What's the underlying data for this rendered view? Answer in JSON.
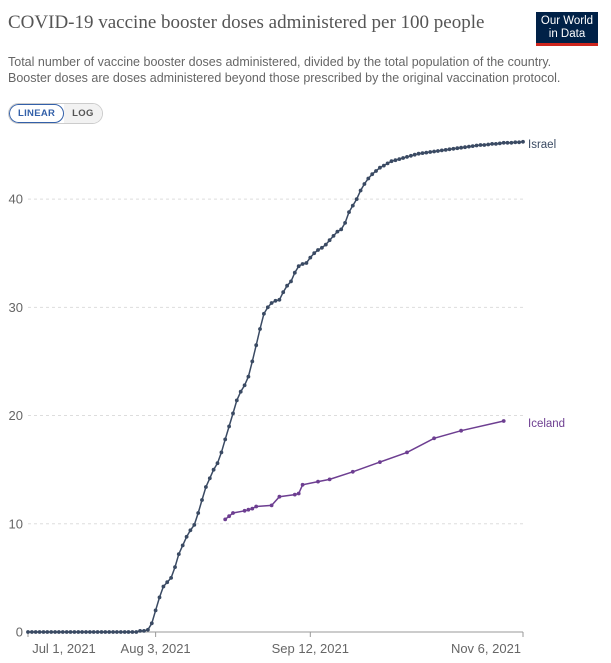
{
  "header": {
    "title": "COVID-19 vaccine booster doses administered per 100 people",
    "subtitle": "Total number of vaccine booster doses administered, divided by the total population of the country. Booster doses are doses administered beyond those prescribed by the original vaccination protocol.",
    "logo_line1": "Our World",
    "logo_line2": "in Data"
  },
  "controls": {
    "linear_label": "LINEAR",
    "log_label": "LOG",
    "selected": "LINEAR"
  },
  "colors": {
    "israel": "#3a4a63",
    "iceland": "#6d3e91",
    "grid": "#dddddd",
    "axis": "#666666",
    "logo_bg": "#002147",
    "logo_accent": "#ce261e"
  },
  "chart_data": {
    "type": "line",
    "title": "COVID-19 vaccine booster doses administered per 100 people",
    "xlabel": "",
    "ylabel": "",
    "x_ticks": [
      "Jul 1, 2021",
      "Aug 3, 2021",
      "Sep 12, 2021",
      "Nov 6, 2021"
    ],
    "y_ticks": [
      0,
      10,
      20,
      30,
      40
    ],
    "ylim": [
      0,
      45
    ],
    "xlim": [
      "2021-07-01",
      "2021-11-06"
    ],
    "grid": true,
    "legend": "labels at line ends",
    "series": [
      {
        "name": "Israel",
        "x": [
          "2021-07-01",
          "2021-07-30",
          "2021-07-31",
          "2021-08-01",
          "2021-08-02",
          "2021-08-03",
          "2021-08-04",
          "2021-08-05",
          "2021-08-06",
          "2021-08-07",
          "2021-08-08",
          "2021-08-09",
          "2021-08-10",
          "2021-08-11",
          "2021-08-12",
          "2021-08-13",
          "2021-08-14",
          "2021-08-15",
          "2021-08-16",
          "2021-08-17",
          "2021-08-18",
          "2021-08-19",
          "2021-08-20",
          "2021-08-21",
          "2021-08-22",
          "2021-08-23",
          "2021-08-24",
          "2021-08-25",
          "2021-08-26",
          "2021-08-27",
          "2021-08-28",
          "2021-08-29",
          "2021-08-30",
          "2021-08-31",
          "2021-09-01",
          "2021-09-02",
          "2021-09-03",
          "2021-09-04",
          "2021-09-05",
          "2021-09-06",
          "2021-09-07",
          "2021-09-08",
          "2021-09-09",
          "2021-09-10",
          "2021-09-11",
          "2021-09-12",
          "2021-09-13",
          "2021-09-14",
          "2021-09-15",
          "2021-09-16",
          "2021-09-17",
          "2021-09-18",
          "2021-09-19",
          "2021-09-20",
          "2021-09-21",
          "2021-09-22",
          "2021-09-23",
          "2021-09-24",
          "2021-09-25",
          "2021-09-26",
          "2021-09-27",
          "2021-09-28",
          "2021-09-29",
          "2021-09-30",
          "2021-10-01",
          "2021-10-02",
          "2021-10-03",
          "2021-10-04",
          "2021-10-05",
          "2021-10-06",
          "2021-10-07",
          "2021-10-08",
          "2021-10-09",
          "2021-10-10",
          "2021-10-11",
          "2021-10-12",
          "2021-10-13",
          "2021-10-14",
          "2021-10-15",
          "2021-10-16",
          "2021-10-17",
          "2021-10-18",
          "2021-10-19",
          "2021-10-20",
          "2021-10-21",
          "2021-10-22",
          "2021-10-23",
          "2021-10-24",
          "2021-10-25",
          "2021-10-26",
          "2021-10-27",
          "2021-10-28",
          "2021-10-29",
          "2021-10-30",
          "2021-10-31",
          "2021-11-01",
          "2021-11-02",
          "2021-11-03",
          "2021-11-04",
          "2021-11-05",
          "2021-11-06"
        ],
        "values": [
          0,
          0.1,
          0.1,
          0.2,
          0.8,
          2.0,
          3.2,
          4.2,
          4.6,
          5.0,
          6.0,
          7.2,
          8.0,
          8.8,
          9.4,
          9.9,
          11.0,
          12.2,
          13.4,
          14.2,
          15.0,
          15.6,
          16.6,
          17.8,
          19.0,
          20.2,
          21.4,
          22.2,
          22.8,
          23.6,
          25.0,
          26.5,
          28.0,
          29.4,
          30.0,
          30.4,
          30.6,
          30.7,
          31.4,
          32.0,
          32.4,
          33.2,
          33.8,
          34.0,
          34.1,
          34.6,
          35.0,
          35.3,
          35.5,
          35.8,
          36.2,
          36.6,
          37.0,
          37.2,
          37.8,
          38.8,
          39.4,
          40.0,
          40.8,
          41.4,
          41.9,
          42.3,
          42.6,
          42.9,
          43.1,
          43.3,
          43.5,
          43.6,
          43.7,
          43.8,
          43.9,
          44.0,
          44.1,
          44.2,
          44.25,
          44.3,
          44.35,
          44.4,
          44.45,
          44.5,
          44.55,
          44.6,
          44.65,
          44.7,
          44.75,
          44.8,
          44.85,
          44.9,
          44.95,
          45.0,
          45.0,
          45.05,
          45.1,
          45.1,
          45.15,
          45.2,
          45.2,
          45.2,
          45.25,
          45.25,
          45.3
        ]
      },
      {
        "name": "Iceland",
        "x": [
          "2021-08-21",
          "2021-08-22",
          "2021-08-23",
          "2021-08-26",
          "2021-08-27",
          "2021-08-28",
          "2021-08-29",
          "2021-09-02",
          "2021-09-04",
          "2021-09-08",
          "2021-09-09",
          "2021-09-10",
          "2021-09-14",
          "2021-09-17",
          "2021-09-23",
          "2021-09-30",
          "2021-10-07",
          "2021-10-14",
          "2021-10-21",
          "2021-11-01"
        ],
        "values": [
          10.4,
          10.7,
          11.0,
          11.2,
          11.3,
          11.4,
          11.6,
          11.7,
          12.5,
          12.7,
          12.8,
          13.6,
          13.9,
          14.1,
          14.8,
          15.7,
          16.6,
          17.9,
          18.6,
          19.5
        ]
      }
    ]
  }
}
